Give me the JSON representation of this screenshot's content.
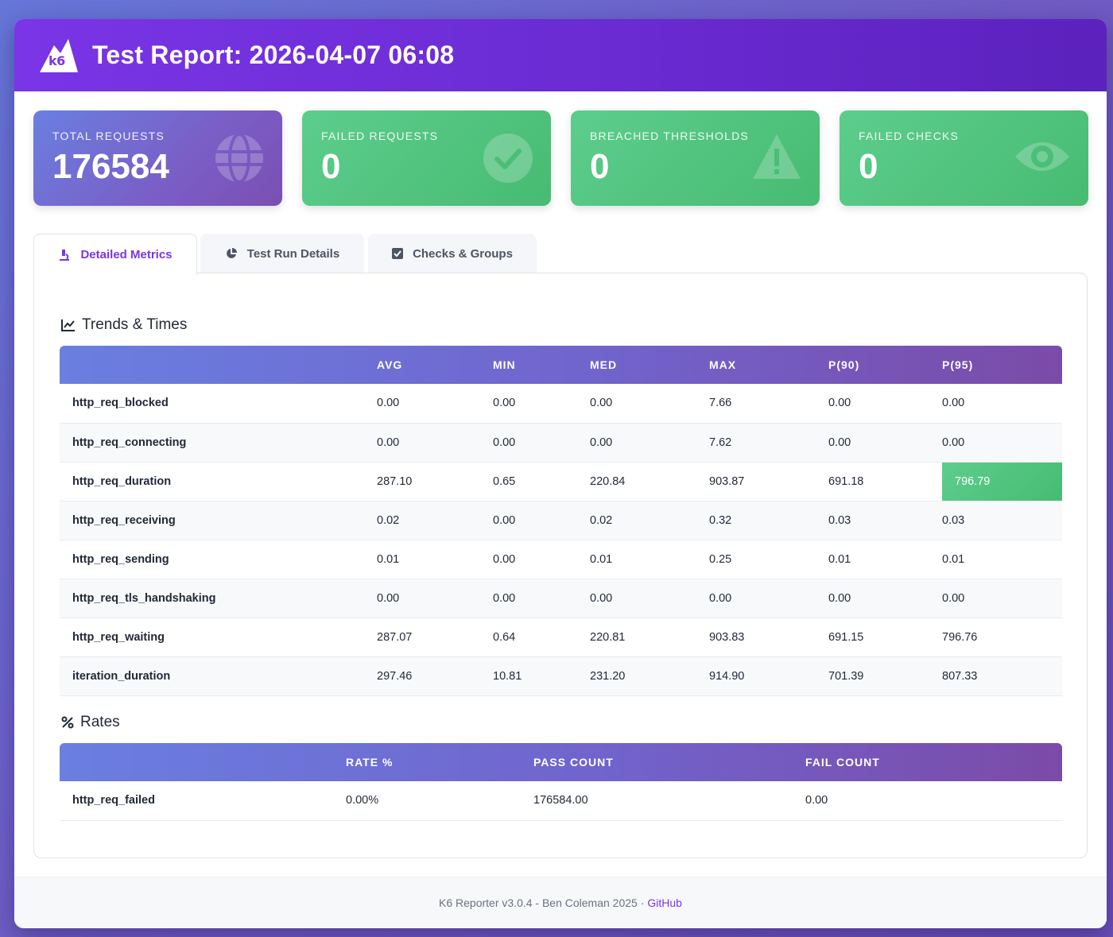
{
  "header": {
    "title": "Test Report: 2026-04-07 06:08",
    "logo_text": "k6"
  },
  "cards": [
    {
      "label": "TOTAL REQUESTS",
      "value": "176584",
      "icon": "globe-icon"
    },
    {
      "label": "FAILED REQUESTS",
      "value": "0",
      "icon": "check-circle-icon"
    },
    {
      "label": "BREACHED THRESHOLDS",
      "value": "0",
      "icon": "warning-icon"
    },
    {
      "label": "FAILED CHECKS",
      "value": "0",
      "icon": "eye-icon"
    }
  ],
  "tabs": [
    {
      "label": "Detailed Metrics",
      "icon": "microscope-icon",
      "active": true
    },
    {
      "label": "Test Run Details",
      "icon": "pie-chart-icon",
      "active": false
    },
    {
      "label": "Checks & Groups",
      "icon": "checkbox-icon",
      "active": false
    }
  ],
  "trends": {
    "title": "Trends & Times",
    "columns": [
      "",
      "AVG",
      "MIN",
      "MED",
      "MAX",
      "P(90)",
      "P(95)"
    ],
    "rows": [
      [
        "http_req_blocked",
        "0.00",
        "0.00",
        "0.00",
        "7.66",
        "0.00",
        "0.00"
      ],
      [
        "http_req_connecting",
        "0.00",
        "0.00",
        "0.00",
        "7.62",
        "0.00",
        "0.00"
      ],
      [
        "http_req_duration",
        "287.10",
        "0.65",
        "220.84",
        "903.87",
        "691.18",
        "796.79"
      ],
      [
        "http_req_receiving",
        "0.02",
        "0.00",
        "0.02",
        "0.32",
        "0.03",
        "0.03"
      ],
      [
        "http_req_sending",
        "0.01",
        "0.00",
        "0.01",
        "0.25",
        "0.01",
        "0.01"
      ],
      [
        "http_req_tls_handshaking",
        "0.00",
        "0.00",
        "0.00",
        "0.00",
        "0.00",
        "0.00"
      ],
      [
        "http_req_waiting",
        "287.07",
        "0.64",
        "220.81",
        "903.83",
        "691.15",
        "796.76"
      ],
      [
        "iteration_duration",
        "297.46",
        "10.81",
        "231.20",
        "914.90",
        "701.39",
        "807.33"
      ]
    ],
    "highlight_color": "#4fc07d"
  },
  "rates": {
    "title": "Rates",
    "columns": [
      "",
      "RATE %",
      "PASS COUNT",
      "FAIL COUNT"
    ],
    "rows": [
      [
        "http_req_failed",
        "0.00%",
        "176584.00",
        "0.00"
      ]
    ]
  },
  "footer": {
    "text": "K6 Reporter v3.0.4 - Ben Coleman 2025 ·",
    "link": "GitHub"
  },
  "colors": {
    "accent": "#7a35e6",
    "success": "#4fc07d"
  }
}
